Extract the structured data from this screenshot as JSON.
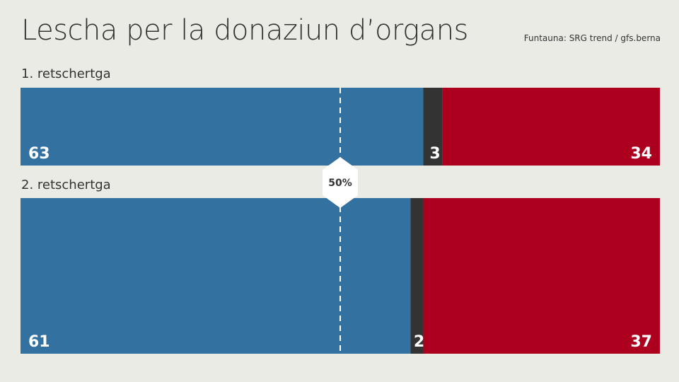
{
  "title": "Lescha per la donaziun d’organs",
  "source": "Funtauna: SRG trend / gfs.berna",
  "midline_label": "50%",
  "colors": {
    "yes": "#3372a0",
    "undecided": "#333333",
    "no": "#ad001e",
    "background": "#ebebe6"
  },
  "chart_data": {
    "type": "bar",
    "orientation": "horizontal-stacked-100",
    "categories": [
      "1. retschertga",
      "2. retschertga"
    ],
    "series": [
      {
        "key": "yes",
        "values": [
          63,
          61
        ]
      },
      {
        "key": "undecided",
        "values": [
          3,
          2
        ]
      },
      {
        "key": "no",
        "values": [
          34,
          37
        ]
      }
    ],
    "reference_line": 50,
    "xlim": [
      0,
      100
    ]
  }
}
